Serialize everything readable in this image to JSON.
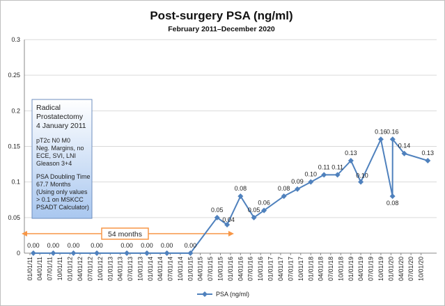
{
  "chart_data": {
    "type": "line",
    "title": "Post-surgery PSA (ng/ml)",
    "subtitle": "February 2011–December 2020",
    "ylim": [
      0,
      0.3
    ],
    "yticks": [
      "0",
      "0.05",
      "0.1",
      "0.15",
      "0.2",
      "0.25",
      "0.3"
    ],
    "categories": [
      "01/01/11",
      "04/01/11",
      "07/01/11",
      "10/01/11",
      "01/01/12",
      "04/01/12",
      "07/01/12",
      "10/01/12",
      "01/01/13",
      "04/01/13",
      "07/01/13",
      "10/01/13",
      "01/01/14",
      "04/01/14",
      "07/01/14",
      "10/01/14",
      "01/01/15",
      "04/01/15",
      "07/01/15",
      "10/01/15",
      "01/01/16",
      "04/01/16",
      "07/01/16",
      "10/01/16",
      "01/01/17",
      "04/01/17",
      "07/01/17",
      "10/01/17",
      "01/01/18",
      "04/01/18",
      "07/01/18",
      "10/01/18",
      "01/01/19",
      "04/01/19",
      "07/01/19",
      "10/01/19",
      "01/01/20",
      "04/01/20",
      "07/01/20",
      "10/01/20"
    ],
    "grid": true,
    "legend": "bottom",
    "series": [
      {
        "name": "PSA (ng/ml)",
        "color": "#4f81bd",
        "points": [
          {
            "x": "2011-02-01",
            "y": 0.0,
            "label": "0.00"
          },
          {
            "x": "2011-08-01",
            "y": 0.0,
            "label": "0.00"
          },
          {
            "x": "2012-02-01",
            "y": 0.0,
            "label": "0.00"
          },
          {
            "x": "2012-09-01",
            "y": 0.0,
            "label": "0.00"
          },
          {
            "x": "2013-06-01",
            "y": 0.0,
            "label": "0.00"
          },
          {
            "x": "2013-12-01",
            "y": 0.0,
            "label": "0.00"
          },
          {
            "x": "2014-06-01",
            "y": 0.0,
            "label": "0.00"
          },
          {
            "x": "2015-01-01",
            "y": 0.0,
            "label": "0.00"
          },
          {
            "x": "2015-09-01",
            "y": 0.05,
            "label": "0.05"
          },
          {
            "x": "2015-12-01",
            "y": 0.04,
            "label": "0.04"
          },
          {
            "x": "2016-04-01",
            "y": 0.08,
            "label": "0.08"
          },
          {
            "x": "2016-08-01",
            "y": 0.05,
            "label": "0.05"
          },
          {
            "x": "2016-11-01",
            "y": 0.06,
            "label": "0.06"
          },
          {
            "x": "2017-05-01",
            "y": 0.08,
            "label": "0.08"
          },
          {
            "x": "2017-09-01",
            "y": 0.09,
            "label": "0.09"
          },
          {
            "x": "2018-01-01",
            "y": 0.1,
            "label": "0.10"
          },
          {
            "x": "2018-05-01",
            "y": 0.11,
            "label": "0.11"
          },
          {
            "x": "2018-09-01",
            "y": 0.11,
            "label": "0.11"
          },
          {
            "x": "2019-01-01",
            "y": 0.13,
            "label": "0.13"
          },
          {
            "x": "2019-04-01",
            "y": 0.1,
            "label": "0.10"
          },
          {
            "x": "2019-10-01",
            "y": 0.16,
            "label": "0.16"
          },
          {
            "x": "2020-01-15",
            "y": 0.08,
            "label": "0.08"
          },
          {
            "x": "2020-01-16",
            "y": 0.16,
            "label": "0.16"
          },
          {
            "x": "2020-05-01",
            "y": 0.14,
            "label": "0.14"
          },
          {
            "x": "2020-12-01",
            "y": 0.13,
            "label": "0.13"
          }
        ]
      }
    ],
    "annotations": {
      "surgery_box": {
        "lines1": [
          "Radical",
          "Prostatectomy",
          "4 January 2011"
        ],
        "lines2": [
          "pT2c N0 M0",
          "Neg. Margins, no",
          "ECE, SVI, LNI",
          "Gleason 3+4"
        ],
        "lines3": [
          "PSA Doubling Time",
          "67.7 Months",
          "(Using only values",
          "> 0.1 on MSKCC",
          "PSADT Calculator)"
        ]
      },
      "interval": {
        "label": "54 months",
        "from": "2011-01-01",
        "to": "2015-07-01",
        "color": "#f79646"
      }
    }
  }
}
